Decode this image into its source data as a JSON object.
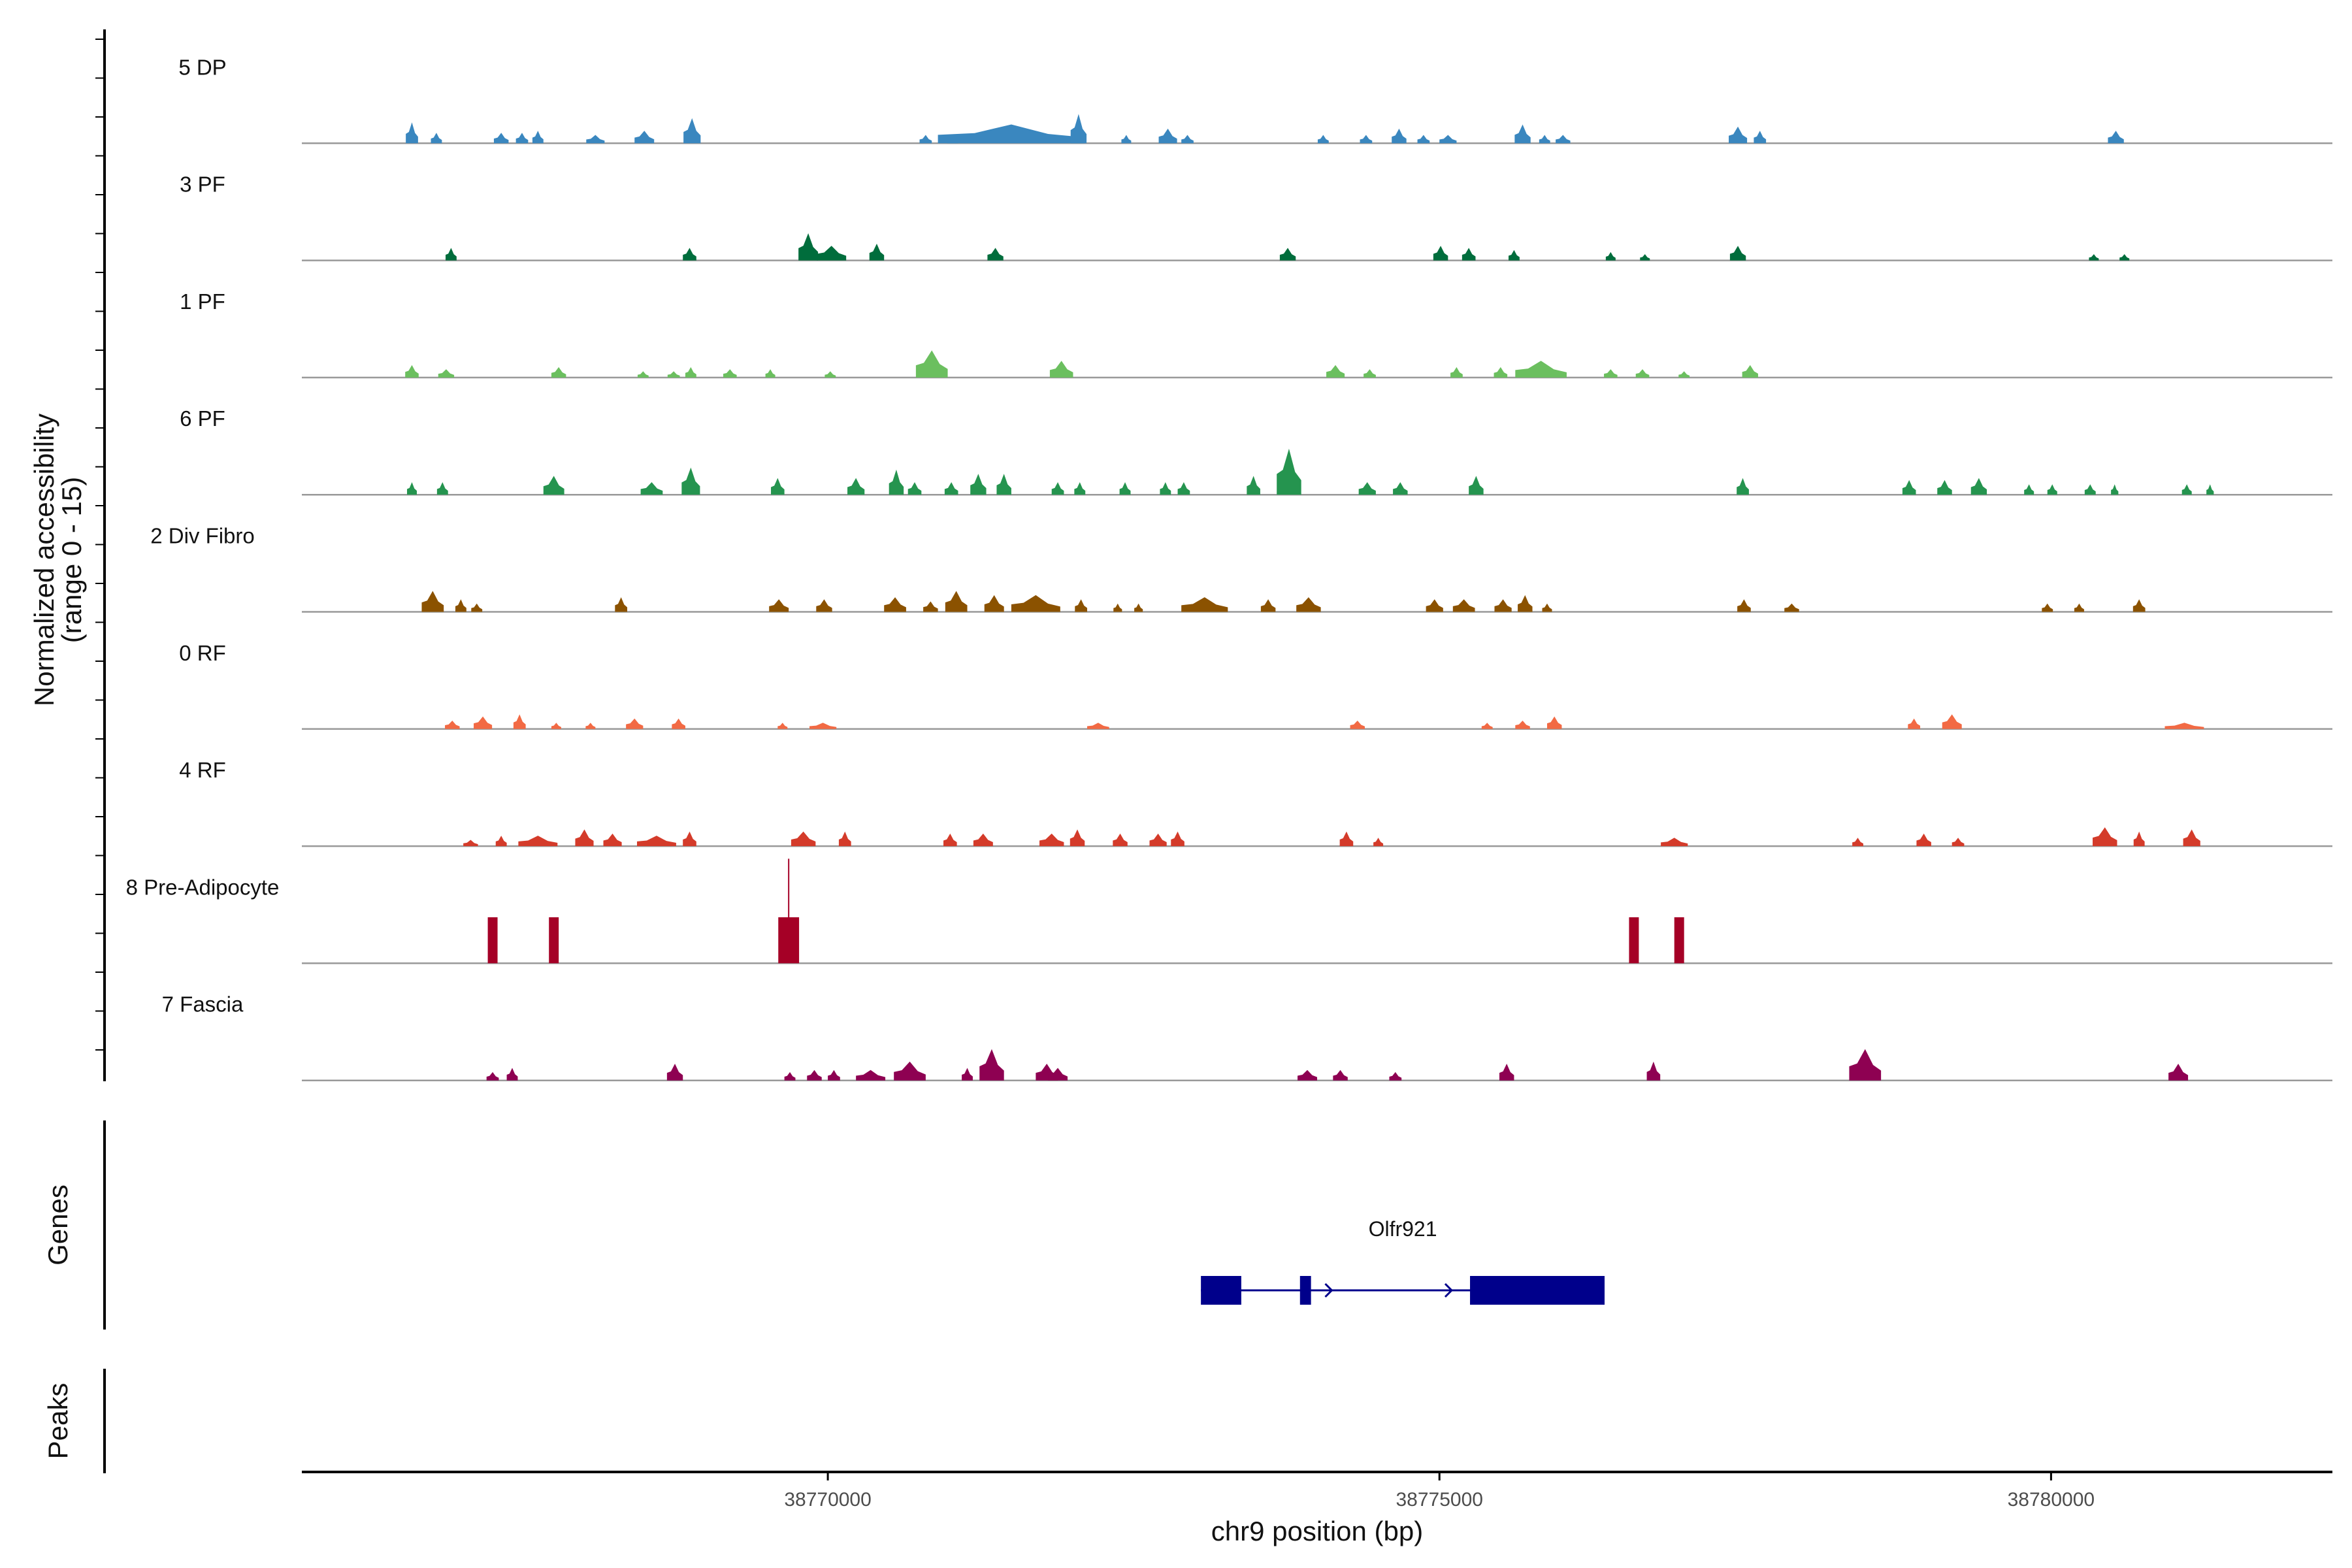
{
  "chart_data": {
    "type": "area",
    "title": "",
    "region": "chr9",
    "xlim": [
      38765700,
      38782300
    ],
    "xlabel": "chr9 position (bp)",
    "ylabel_line1": "Normalized accessibility",
    "ylabel_line2": "(range 0 - 15)",
    "y_range": [
      0,
      15
    ],
    "x_ticks": [
      {
        "value": 38770000,
        "label": "38770000"
      },
      {
        "value": 38775000,
        "label": "38775000"
      },
      {
        "value": 38780000,
        "label": "38780000"
      }
    ],
    "series": [
      {
        "name": "5 DP",
        "color": "#3a87bf",
        "peaks": [
          [
            38766600,
            100,
            10
          ],
          [
            38766800,
            90,
            5
          ],
          [
            38767330,
            120,
            5
          ],
          [
            38767500,
            100,
            5
          ],
          [
            38767630,
            90,
            6
          ],
          [
            38768100,
            150,
            4
          ],
          [
            38768500,
            160,
            6
          ],
          [
            38768890,
            140,
            12
          ],
          [
            38770800,
            100,
            4
          ],
          [
            38771020,
            90,
            4
          ],
          [
            38771500,
            1200,
            9
          ],
          [
            38772050,
            130,
            14
          ],
          [
            38772440,
            80,
            4
          ],
          [
            38772780,
            150,
            7
          ],
          [
            38772940,
            100,
            4
          ],
          [
            38774050,
            90,
            4
          ],
          [
            38774400,
            100,
            4
          ],
          [
            38774670,
            120,
            7
          ],
          [
            38774870,
            100,
            4
          ],
          [
            38775070,
            140,
            4
          ],
          [
            38775680,
            130,
            9
          ],
          [
            38775860,
            90,
            4
          ],
          [
            38776010,
            120,
            4
          ],
          [
            38777440,
            150,
            8
          ],
          [
            38777620,
            100,
            6
          ],
          [
            38780530,
            130,
            6
          ]
        ]
      },
      {
        "name": "3 PF",
        "color": "#006d3c",
        "peaks": [
          [
            38766920,
            90,
            6
          ],
          [
            38768870,
            110,
            6
          ],
          [
            38769840,
            160,
            13
          ],
          [
            38770030,
            240,
            7
          ],
          [
            38770400,
            120,
            8
          ],
          [
            38771370,
            130,
            6
          ],
          [
            38773760,
            130,
            6
          ],
          [
            38775010,
            120,
            7
          ],
          [
            38775240,
            110,
            6
          ],
          [
            38775610,
            90,
            5
          ],
          [
            38776400,
            80,
            4
          ],
          [
            38776680,
            80,
            3
          ],
          [
            38777440,
            130,
            7
          ],
          [
            38780350,
            80,
            3
          ],
          [
            38780600,
            80,
            3
          ]
        ]
      },
      {
        "name": "1 PF",
        "color": "#6bbf5f",
        "peaks": [
          [
            38766600,
            110,
            6
          ],
          [
            38766880,
            130,
            4
          ],
          [
            38767800,
            120,
            5
          ],
          [
            38768490,
            90,
            3
          ],
          [
            38768740,
            100,
            3
          ],
          [
            38768880,
            90,
            5
          ],
          [
            38769200,
            110,
            4
          ],
          [
            38769530,
            80,
            4
          ],
          [
            38770020,
            90,
            3
          ],
          [
            38770850,
            260,
            13
          ],
          [
            38771910,
            190,
            8
          ],
          [
            38774150,
            150,
            6
          ],
          [
            38774430,
            100,
            4
          ],
          [
            38775140,
            100,
            5
          ],
          [
            38775500,
            110,
            5
          ],
          [
            38775830,
            420,
            8
          ],
          [
            38776400,
            110,
            4
          ],
          [
            38776660,
            110,
            4
          ],
          [
            38777000,
            90,
            3
          ],
          [
            38777540,
            130,
            6
          ]
        ]
      },
      {
        "name": "6 PF",
        "color": "#25944f",
        "peaks": [
          [
            38766600,
            80,
            6
          ],
          [
            38766850,
            90,
            6
          ],
          [
            38767760,
            170,
            9
          ],
          [
            38768560,
            180,
            6
          ],
          [
            38768880,
            150,
            13
          ],
          [
            38769590,
            110,
            8
          ],
          [
            38770230,
            140,
            8
          ],
          [
            38770560,
            120,
            12
          ],
          [
            38770710,
            110,
            6
          ],
          [
            38771010,
            110,
            6
          ],
          [
            38771230,
            130,
            10
          ],
          [
            38771440,
            120,
            10
          ],
          [
            38771880,
            100,
            6
          ],
          [
            38772060,
            90,
            6
          ],
          [
            38772430,
            90,
            6
          ],
          [
            38772760,
            90,
            6
          ],
          [
            38772910,
            100,
            6
          ],
          [
            38773480,
            110,
            9
          ],
          [
            38773770,
            200,
            22
          ],
          [
            38774410,
            140,
            6
          ],
          [
            38774680,
            120,
            6
          ],
          [
            38775300,
            120,
            9
          ],
          [
            38777480,
            100,
            8
          ],
          [
            38778840,
            110,
            7
          ],
          [
            38779130,
            120,
            7
          ],
          [
            38779410,
            130,
            8
          ],
          [
            38779820,
            80,
            5
          ],
          [
            38780010,
            80,
            5
          ],
          [
            38780320,
            90,
            5
          ],
          [
            38780520,
            60,
            5
          ],
          [
            38781110,
            80,
            5
          ],
          [
            38781300,
            60,
            5
          ]
        ]
      },
      {
        "name": "2 Div Fibro",
        "color": "#8b5200",
        "peaks": [
          [
            38766770,
            180,
            10
          ],
          [
            38767000,
            90,
            6
          ],
          [
            38767130,
            90,
            4
          ],
          [
            38768310,
            100,
            7
          ],
          [
            38769600,
            160,
            6
          ],
          [
            38769970,
            130,
            6
          ],
          [
            38770550,
            180,
            7
          ],
          [
            38770840,
            120,
            5
          ],
          [
            38771050,
            180,
            10
          ],
          [
            38771360,
            160,
            8
          ],
          [
            38771700,
            400,
            8
          ],
          [
            38772070,
            100,
            6
          ],
          [
            38772370,
            70,
            4
          ],
          [
            38772540,
            70,
            4
          ],
          [
            38773080,
            380,
            7
          ],
          [
            38773600,
            120,
            6
          ],
          [
            38773930,
            200,
            7
          ],
          [
            38774960,
            140,
            6
          ],
          [
            38775200,
            180,
            6
          ],
          [
            38775520,
            140,
            6
          ],
          [
            38775700,
            120,
            8
          ],
          [
            38775880,
            80,
            4
          ],
          [
            38777490,
            110,
            6
          ],
          [
            38777880,
            120,
            4
          ],
          [
            38779970,
            90,
            4
          ],
          [
            38780230,
            80,
            4
          ],
          [
            38780720,
            100,
            6
          ]
        ]
      },
      {
        "name": "0 RF",
        "color": "#f26a44",
        "peaks": [
          [
            38766930,
            120,
            4
          ],
          [
            38767180,
            150,
            6
          ],
          [
            38767480,
            100,
            7
          ],
          [
            38767780,
            80,
            3
          ],
          [
            38768060,
            80,
            3
          ],
          [
            38768420,
            140,
            5
          ],
          [
            38768780,
            110,
            5
          ],
          [
            38769630,
            80,
            3
          ],
          [
            38769960,
            220,
            3
          ],
          [
            38772210,
            180,
            3
          ],
          [
            38774330,
            120,
            4
          ],
          [
            38775390,
            90,
            3
          ],
          [
            38775680,
            120,
            4
          ],
          [
            38775940,
            120,
            6
          ],
          [
            38778880,
            100,
            5
          ],
          [
            38779190,
            160,
            7
          ],
          [
            38781090,
            320,
            3
          ]
        ]
      },
      {
        "name": "4 RF",
        "color": "#d43b2a",
        "peaks": [
          [
            38767080,
            120,
            3
          ],
          [
            38767330,
            90,
            5
          ],
          [
            38767630,
            320,
            5
          ],
          [
            38768010,
            150,
            8
          ],
          [
            38768240,
            150,
            6
          ],
          [
            38768600,
            320,
            5
          ],
          [
            38768870,
            110,
            7
          ],
          [
            38769800,
            200,
            7
          ],
          [
            38770140,
            100,
            7
          ],
          [
            38771000,
            110,
            6
          ],
          [
            38771270,
            160,
            6
          ],
          [
            38771830,
            200,
            6
          ],
          [
            38772040,
            120,
            8
          ],
          [
            38772390,
            120,
            6
          ],
          [
            38772700,
            140,
            6
          ],
          [
            38772860,
            110,
            7
          ],
          [
            38774240,
            110,
            7
          ],
          [
            38774500,
            80,
            4
          ],
          [
            38776920,
            220,
            4
          ],
          [
            38778420,
            90,
            4
          ],
          [
            38778960,
            120,
            6
          ],
          [
            38779240,
            100,
            4
          ],
          [
            38780440,
            200,
            9
          ],
          [
            38780720,
            90,
            7
          ],
          [
            38781150,
            140,
            8
          ]
        ]
      },
      {
        "name": "8 Pre-Adipocyte",
        "color": "#a50026",
        "peaks": [
          [
            38767260,
            80,
            22
          ],
          [
            38767760,
            80,
            22
          ],
          [
            38769680,
            170,
            22
          ],
          [
            38776590,
            80,
            22
          ],
          [
            38776960,
            80,
            22
          ]
        ]
      },
      {
        "name": "7 Fascia",
        "color": "#8e0152",
        "peaks": [
          [
            38767260,
            100,
            4
          ],
          [
            38767420,
            90,
            6
          ],
          [
            38768750,
            130,
            8
          ],
          [
            38769690,
            90,
            4
          ],
          [
            38769890,
            120,
            5
          ],
          [
            38770050,
            100,
            5
          ],
          [
            38770350,
            240,
            5
          ],
          [
            38770670,
            260,
            9
          ],
          [
            38771140,
            90,
            6
          ],
          [
            38771340,
            200,
            15
          ],
          [
            38771790,
            180,
            8
          ],
          [
            38771880,
            160,
            6
          ],
          [
            38773920,
            160,
            5
          ],
          [
            38774190,
            120,
            5
          ],
          [
            38774640,
            100,
            4
          ],
          [
            38775550,
            120,
            8
          ],
          [
            38776750,
            110,
            9
          ],
          [
            38778480,
            260,
            15
          ],
          [
            38781040,
            160,
            8
          ]
        ]
      }
    ],
    "genes": [
      {
        "name": "Olfr921",
        "strand": "+",
        "start": 38773050,
        "end": 38776350,
        "exons": [
          [
            38773050,
            38773380
          ],
          [
            38773860,
            38773950
          ],
          [
            38775250,
            38776350
          ]
        ],
        "arrows": [
          38773120,
          38774120,
          38775100
        ]
      }
    ],
    "panel_labels": {
      "genes": "Genes",
      "peaks": "Peaks"
    }
  }
}
